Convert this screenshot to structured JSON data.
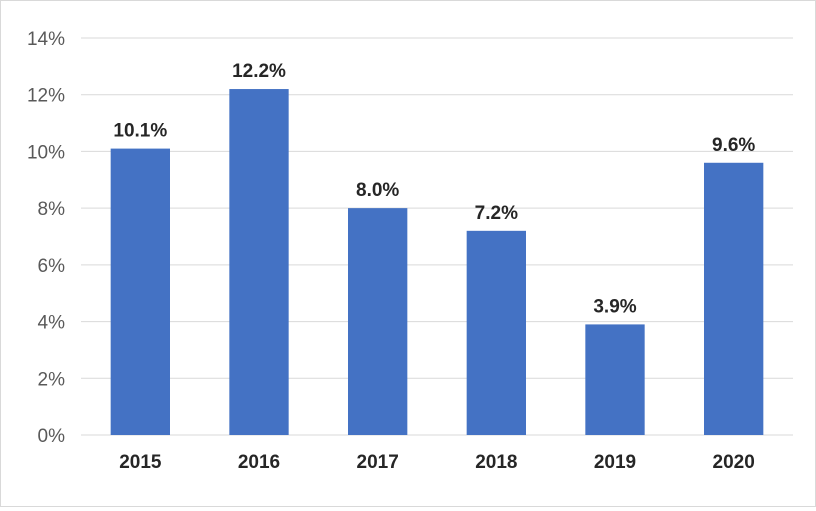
{
  "chart_data": {
    "type": "bar",
    "title": "",
    "xlabel": "",
    "ylabel": "",
    "categories": [
      "2015",
      "2016",
      "2017",
      "2018",
      "2019",
      "2020"
    ],
    "values": [
      10.1,
      12.2,
      8.0,
      7.2,
      3.9,
      9.6
    ],
    "data_labels": [
      "10.1%",
      "12.2%",
      "8.0%",
      "7.2%",
      "3.9%",
      "9.6%"
    ],
    "ylim": [
      0,
      14
    ],
    "yticks": [
      0,
      2,
      4,
      6,
      8,
      10,
      12,
      14
    ],
    "ytick_labels": [
      "0%",
      "2%",
      "4%",
      "6%",
      "8%",
      "10%",
      "12%",
      "14%"
    ],
    "grid": true,
    "legend": "none",
    "bar_color": "#4472C4"
  }
}
